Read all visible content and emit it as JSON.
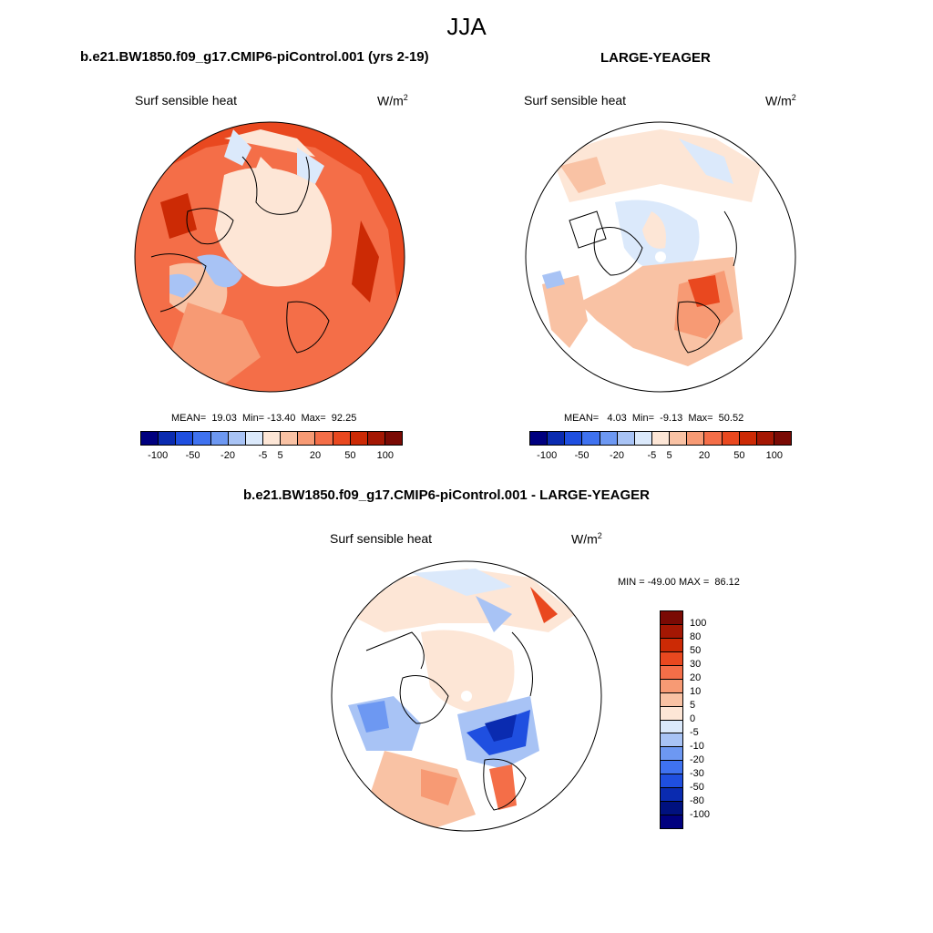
{
  "figure": {
    "title": "JJA",
    "variable": "Surf sensible heat",
    "units_base": "W/m",
    "units_exp": "2"
  },
  "panels": [
    {
      "case": "b.e21.BW1850.f09_g17.CMIP6-piControl.001 (yrs 2-19)",
      "stats": "MEAN=  19.03  Min= -13.40  Max=  92.25",
      "mean": 19.03,
      "min": -13.4,
      "max": 92.25
    },
    {
      "case": "LARGE-YEAGER",
      "stats": "MEAN=   4.03  Min=  -9.13  Max=  50.52",
      "mean": 4.03,
      "min": -9.13,
      "max": 50.52
    },
    {
      "case": "b.e21.BW1850.f09_g17.CMIP6-piControl.001 - LARGE-YEAGER",
      "stats": "MIN = -49.00 MAX =  86.12",
      "min": -49.0,
      "max": 86.12
    }
  ],
  "colorbar_top": {
    "colors": [
      "#00007f",
      "#0a2bb0",
      "#1f4fe0",
      "#3f72f0",
      "#6d98f2",
      "#a8c3f5",
      "#dbe9fb",
      "#fde6d6",
      "#f9c2a4",
      "#f79a74",
      "#f46e48",
      "#e9481f",
      "#cc2a05",
      "#a41703",
      "#7a0a04"
    ],
    "tick_labels": [
      "-100",
      "-50",
      "-20",
      "-5",
      "5",
      "20",
      "50",
      "100"
    ]
  },
  "colorbar_diff": {
    "colors": [
      "#7a0a04",
      "#a41703",
      "#cc2a05",
      "#e9481f",
      "#f46e48",
      "#f79a74",
      "#f9c2a4",
      "#fde6d6",
      "#dbe9fb",
      "#a8c3f5",
      "#6d98f2",
      "#3f72f0",
      "#1f4fe0",
      "#0a2bb0",
      "#00117f",
      "#00007f"
    ],
    "tick_labels": [
      "100",
      "80",
      "50",
      "30",
      "20",
      "10",
      "5",
      "0",
      "-5",
      "-10",
      "-20",
      "-30",
      "-50",
      "-80",
      "-100"
    ]
  }
}
